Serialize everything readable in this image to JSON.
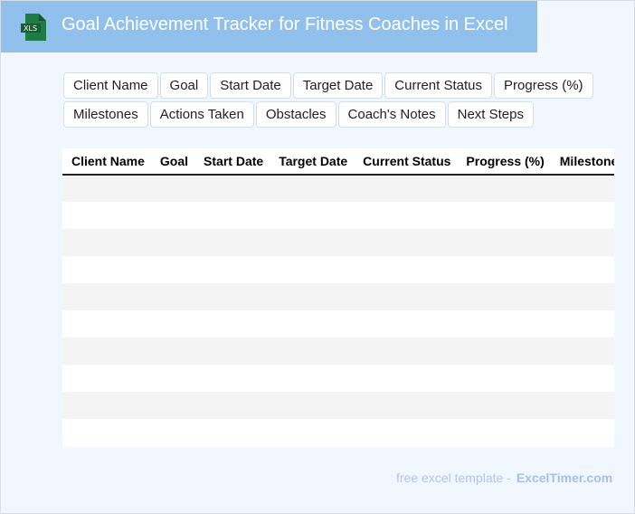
{
  "header": {
    "title": "Goal Achievement Tracker for Fitness Coaches in Excel",
    "icon": "xls-file-icon",
    "icon_label": "XLS",
    "color": "#92c0ec"
  },
  "fields": {
    "row1": [
      "Client Name",
      "Goal",
      "Start Date",
      "Target Date",
      "Current Status",
      "Progress (%)"
    ],
    "row2": [
      "Milestones",
      "Actions Taken",
      "Obstacles",
      "Coach's Notes",
      "Next Steps"
    ]
  },
  "table": {
    "columns": [
      "Client Name",
      "Goal",
      "Start Date",
      "Target Date",
      "Current Status",
      "Progress (%)",
      "Milestones"
    ],
    "row_count": 10
  },
  "footer": {
    "text": "free excel template -",
    "brand": "ExcelTimer.com"
  }
}
